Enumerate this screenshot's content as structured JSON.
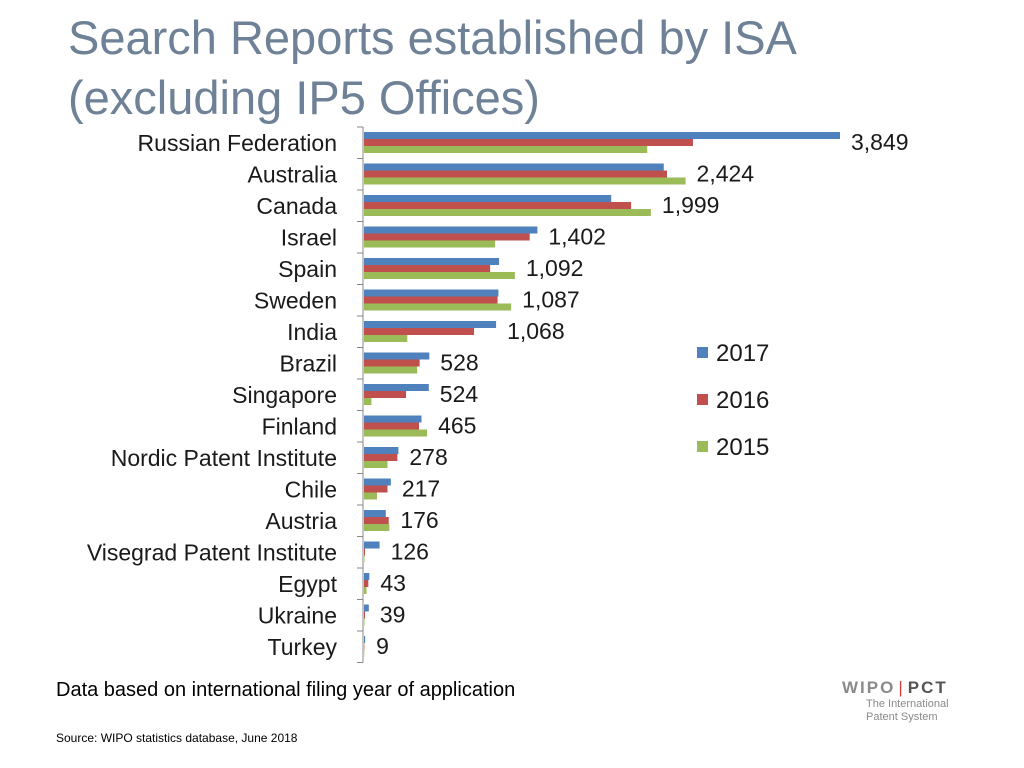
{
  "slide": {
    "title_line1": "Search Reports established by ISA",
    "title_line2": "(excluding IP5 Offices)",
    "note": "Data based on international filing year of application",
    "source": "Source: WIPO statistics database, June 2018"
  },
  "logo": {
    "brand": "WIPO",
    "separator": "|",
    "product": "PCT",
    "tagline_line1": "The International",
    "tagline_line2": "Patent System"
  },
  "colors": {
    "2017": "#4f81bd",
    "2016": "#c0504d",
    "2015": "#9bbb59"
  },
  "chart_data": {
    "type": "bar",
    "orientation": "horizontal",
    "categories": [
      "Russian Federation",
      "Australia",
      "Canada",
      "Israel",
      "Spain",
      "Sweden",
      "India",
      "Brazil",
      "Singapore",
      "Finland",
      "Nordic Patent Institute",
      "Chile",
      "Austria",
      "Visegrad Patent Institute",
      "Egypt",
      "Ukraine",
      "Turkey"
    ],
    "series": [
      {
        "name": "2017",
        "values": [
          3849,
          2424,
          1999,
          1402,
          1092,
          1087,
          1068,
          528,
          524,
          465,
          278,
          217,
          176,
          126,
          43,
          39,
          9
        ]
      },
      {
        "name": "2016",
        "values": [
          2660,
          2450,
          2160,
          1340,
          1020,
          1080,
          890,
          450,
          340,
          445,
          270,
          190,
          200,
          8,
          35,
          8,
          3
        ]
      },
      {
        "name": "2015",
        "values": [
          2290,
          2600,
          2320,
          1060,
          1220,
          1190,
          350,
          430,
          60,
          510,
          190,
          105,
          205,
          4,
          20,
          4,
          2
        ]
      }
    ],
    "data_labels": [
      "3,849",
      "2,424",
      "1,999",
      "1,402",
      "1,092",
      "1,087",
      "1,068",
      "528",
      "524",
      "465",
      "278",
      "217",
      "176",
      "126",
      "43",
      "39",
      "9"
    ],
    "xlim": [
      0,
      3849
    ],
    "legend_position": "right",
    "grid": false
  }
}
